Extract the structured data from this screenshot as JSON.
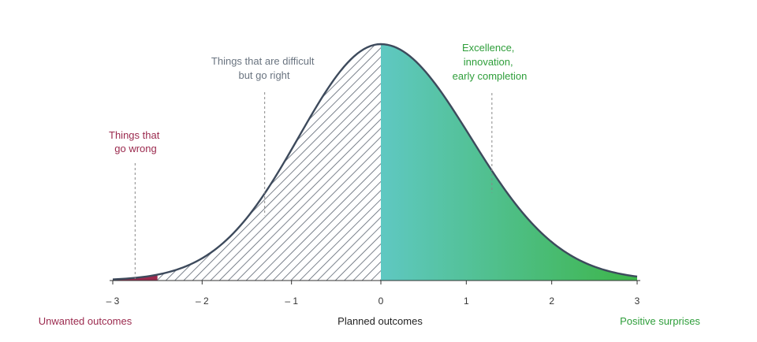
{
  "annotations": {
    "go_wrong": [
      "Things that",
      "go wrong"
    ],
    "difficult_right": [
      "Things that are difficult",
      "but go right"
    ],
    "excellence": [
      "Excellence,",
      "innovation,",
      "early completion"
    ]
  },
  "axis": {
    "ticks": [
      {
        "value": -3,
        "label": "– 3"
      },
      {
        "value": -2,
        "label": "– 2"
      },
      {
        "value": -1,
        "label": "– 1"
      },
      {
        "value": 0,
        "label": "0"
      },
      {
        "value": 1,
        "label": "1"
      },
      {
        "value": 2,
        "label": "2"
      },
      {
        "value": 3,
        "label": "3"
      }
    ]
  },
  "bottom_labels": {
    "unwanted": "Unwanted outcomes",
    "planned": "Planned outcomes",
    "positive": "Positive surprises"
  },
  "colors": {
    "curve": "#3d4a5c",
    "hatch": "#5b6470",
    "wrong": "#9b2a4e",
    "teal": "#5fc8c2",
    "green": "#3db549",
    "difficult_text": "#6a7480",
    "positive_text": "#2e9e3a"
  },
  "chart_data": {
    "type": "area",
    "x_range": [
      -3,
      3
    ],
    "regions": [
      {
        "from": -3,
        "to": -2.5,
        "label": "Things that go wrong",
        "fill": "solid-red"
      },
      {
        "from": -2.5,
        "to": 0,
        "label": "Things that are difficult but go right",
        "fill": "hatched"
      },
      {
        "from": 0,
        "to": 3,
        "label": "Excellence, innovation, early completion",
        "fill": "teal-to-green gradient"
      }
    ],
    "annotation_x": {
      "go_wrong": -2.75,
      "difficult_right": -1.3,
      "excellence": 1.3
    }
  }
}
